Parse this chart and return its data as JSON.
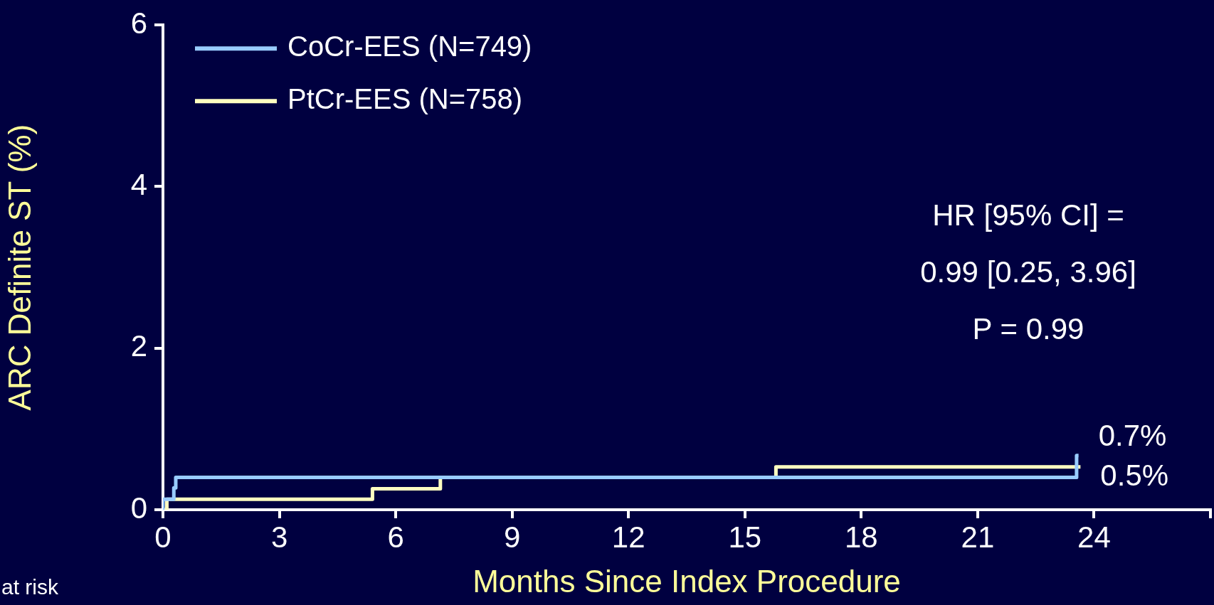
{
  "chart_data": {
    "type": "step",
    "xlabel": "Months Since Index Procedure",
    "ylabel": "ARC Definite ST (%)",
    "xlim": [
      0,
      27
    ],
    "xticks": [
      0,
      3,
      6,
      9,
      12,
      15,
      18,
      21,
      24,
      {
        "value": 27,
        "label": null
      }
    ],
    "ylim": [
      0,
      6
    ],
    "yticks": [
      0,
      2,
      4,
      6
    ],
    "series": [
      {
        "name": "CoCr-EES (N=749)",
        "color": "#99ccff",
        "x": [
          0,
          0,
          0.28,
          0.33,
          23.55,
          23.6
        ],
        "values": [
          0,
          0.13,
          0.27,
          0.4,
          0.67,
          0.67
        ]
      },
      {
        "name": "PtCr-EES (N=758)",
        "color": "#ffffc0",
        "x": [
          0,
          0.1,
          5.4,
          7.15,
          15.8,
          23.65
        ],
        "values": [
          0,
          0.13,
          0.26,
          0.4,
          0.53,
          0.53
        ]
      }
    ],
    "annotations": [
      "HR [95% CI] =",
      "0.99 [0.25, 3.96]",
      "P = 0.99",
      {
        "text": "0.7%",
        "x": 23.6,
        "y": 0.67
      },
      {
        "text": "0.5%",
        "x": 23.65,
        "y": 0.53
      },
      "at risk"
    ],
    "grid": false,
    "legend": "top left",
    "marker": "none",
    "line_style": "solid"
  }
}
